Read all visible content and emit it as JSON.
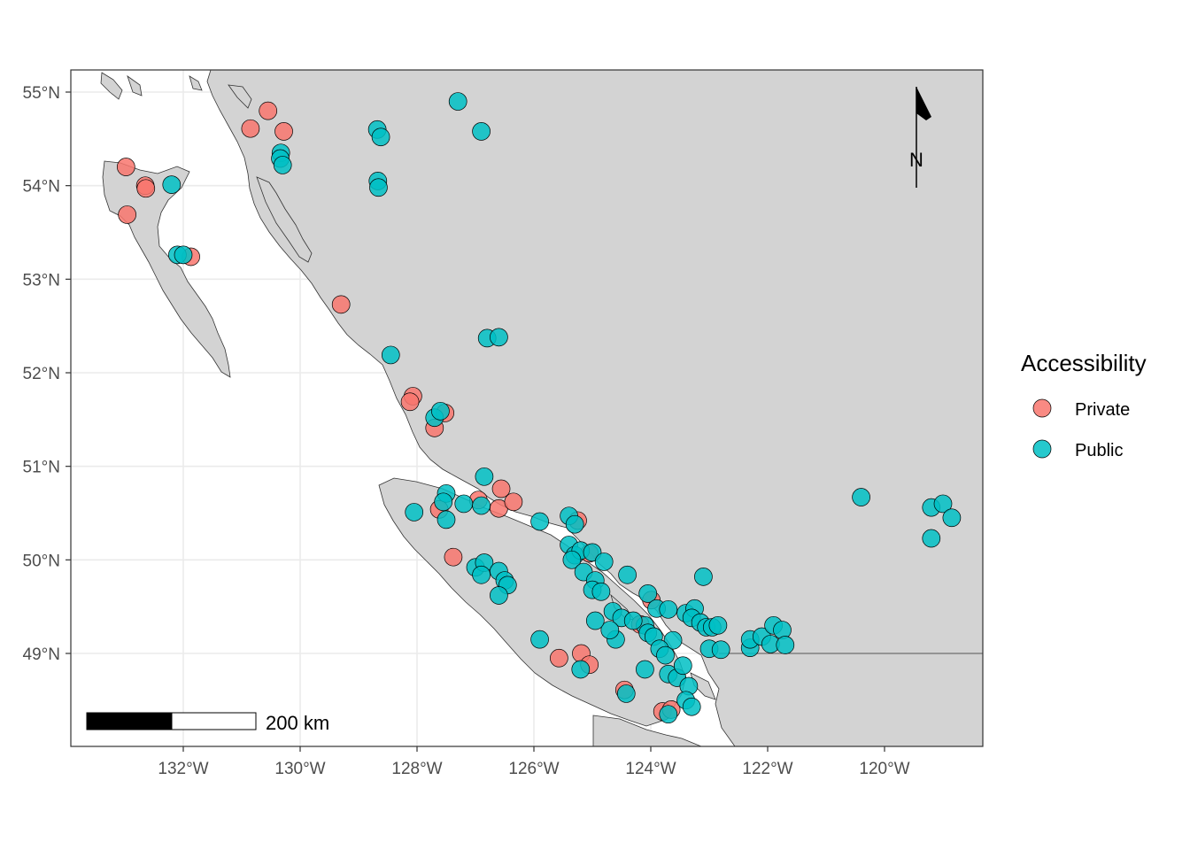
{
  "legend": {
    "title": "Accessibility",
    "items": [
      {
        "label": "Private",
        "color": "#F8766D"
      },
      {
        "label": "Public",
        "color": "#00BFC4"
      }
    ]
  },
  "scalebar": {
    "label": "200 km"
  },
  "north_arrow": {
    "label": "N"
  },
  "colors": {
    "land": "#d3d3d3",
    "water": "#ffffff",
    "grid": "#ebebeb",
    "border": "#333333"
  },
  "chart_data": {
    "type": "scatter",
    "title": "",
    "xlabel": "",
    "ylabel": "",
    "xlim": [
      -133.7,
      -118.3
    ],
    "ylim": [
      48.0,
      55.2
    ],
    "x_ticks": [
      -132,
      -130,
      -128,
      -126,
      -124,
      -122,
      -120
    ],
    "x_tick_labels": [
      "132°W",
      "130°W",
      "128°W",
      "126°W",
      "124°W",
      "122°W",
      "120°W"
    ],
    "y_ticks": [
      49,
      50,
      51,
      52,
      53,
      54,
      55
    ],
    "y_tick_labels": [
      "49°N",
      "50°N",
      "51°N",
      "52°N",
      "53°N",
      "54°N",
      "55°N"
    ],
    "grid": true,
    "legend_position": "right",
    "series": [
      {
        "name": "Private",
        "color": "#F8766D",
        "points": [
          [
            -132.98,
            54.2
          ],
          [
            -132.65,
            54.0
          ],
          [
            -132.64,
            53.97
          ],
          [
            -132.96,
            53.69
          ],
          [
            -131.87,
            53.24
          ],
          [
            -130.85,
            54.61
          ],
          [
            -130.55,
            54.8
          ],
          [
            -130.28,
            54.58
          ],
          [
            -129.3,
            52.73
          ],
          [
            -128.07,
            51.75
          ],
          [
            -128.12,
            51.69
          ],
          [
            -127.52,
            51.57
          ],
          [
            -127.7,
            51.41
          ],
          [
            -127.62,
            50.54
          ],
          [
            -127.38,
            50.03
          ],
          [
            -126.95,
            50.64
          ],
          [
            -126.6,
            50.55
          ],
          [
            -126.56,
            50.76
          ],
          [
            -126.35,
            50.62
          ],
          [
            -125.25,
            50.42
          ],
          [
            -125.05,
            50.07
          ],
          [
            -125.19,
            49.0
          ],
          [
            -125.05,
            48.88
          ],
          [
            -125.57,
            48.95
          ],
          [
            -124.45,
            48.61
          ],
          [
            -124.18,
            49.31
          ],
          [
            -123.99,
            49.57
          ],
          [
            -123.8,
            48.38
          ],
          [
            -123.65,
            48.4
          ]
        ]
      },
      {
        "name": "Public",
        "color": "#00BFC4",
        "points": [
          [
            -132.2,
            54.01
          ],
          [
            -132.1,
            53.26
          ],
          [
            -132.0,
            53.26
          ],
          [
            -130.33,
            54.35
          ],
          [
            -130.34,
            54.29
          ],
          [
            -130.3,
            54.22
          ],
          [
            -128.68,
            54.6
          ],
          [
            -128.62,
            54.52
          ],
          [
            -128.67,
            54.05
          ],
          [
            -128.66,
            53.98
          ],
          [
            -127.3,
            54.9
          ],
          [
            -126.9,
            54.58
          ],
          [
            -126.8,
            52.37
          ],
          [
            -126.6,
            52.38
          ],
          [
            -128.45,
            52.19
          ],
          [
            -127.7,
            51.52
          ],
          [
            -127.6,
            51.59
          ],
          [
            -126.85,
            50.89
          ],
          [
            -127.5,
            50.71
          ],
          [
            -127.55,
            50.62
          ],
          [
            -127.2,
            50.6
          ],
          [
            -126.9,
            50.58
          ],
          [
            -128.05,
            50.51
          ],
          [
            -127.5,
            50.43
          ],
          [
            -125.9,
            50.41
          ],
          [
            -125.4,
            50.47
          ],
          [
            -125.3,
            50.38
          ],
          [
            -125.4,
            50.16
          ],
          [
            -125.3,
            50.05
          ],
          [
            -125.2,
            50.1
          ],
          [
            -125.0,
            50.08
          ],
          [
            -125.35,
            50.0
          ],
          [
            -124.8,
            49.98
          ],
          [
            -124.4,
            49.84
          ],
          [
            -125.15,
            49.87
          ],
          [
            -124.95,
            49.78
          ],
          [
            -125.0,
            49.68
          ],
          [
            -124.85,
            49.66
          ],
          [
            -127.0,
            49.92
          ],
          [
            -126.85,
            49.97
          ],
          [
            -126.9,
            49.84
          ],
          [
            -126.6,
            49.88
          ],
          [
            -126.5,
            49.78
          ],
          [
            -126.45,
            49.73
          ],
          [
            -126.6,
            49.62
          ],
          [
            -124.05,
            49.64
          ],
          [
            -123.9,
            49.48
          ],
          [
            -123.7,
            49.47
          ],
          [
            -123.4,
            49.43
          ],
          [
            -123.25,
            49.48
          ],
          [
            -123.3,
            49.38
          ],
          [
            -123.15,
            49.33
          ],
          [
            -123.05,
            49.28
          ],
          [
            -122.95,
            49.28
          ],
          [
            -122.85,
            49.3
          ],
          [
            -123.1,
            49.82
          ],
          [
            -124.65,
            49.45
          ],
          [
            -124.5,
            49.38
          ],
          [
            -124.1,
            49.3
          ],
          [
            -124.05,
            49.22
          ],
          [
            -123.95,
            49.18
          ],
          [
            -123.62,
            49.14
          ],
          [
            -124.3,
            49.35
          ],
          [
            -124.6,
            49.15
          ],
          [
            -124.7,
            49.25
          ],
          [
            -124.95,
            49.35
          ],
          [
            -125.9,
            49.15
          ],
          [
            -125.2,
            48.83
          ],
          [
            -124.1,
            48.83
          ],
          [
            -123.85,
            49.05
          ],
          [
            -123.75,
            48.98
          ],
          [
            -123.7,
            48.78
          ],
          [
            -123.55,
            48.74
          ],
          [
            -123.45,
            48.87
          ],
          [
            -123.35,
            48.65
          ],
          [
            -123.4,
            48.5
          ],
          [
            -123.3,
            48.43
          ],
          [
            -124.42,
            48.57
          ],
          [
            -123.7,
            48.35
          ],
          [
            -123.0,
            49.05
          ],
          [
            -122.8,
            49.04
          ],
          [
            -122.3,
            49.06
          ],
          [
            -122.3,
            49.15
          ],
          [
            -122.1,
            49.18
          ],
          [
            -121.95,
            49.1
          ],
          [
            -121.9,
            49.3
          ],
          [
            -121.75,
            49.25
          ],
          [
            -121.7,
            49.09
          ],
          [
            -120.4,
            50.67
          ],
          [
            -119.2,
            50.56
          ],
          [
            -119.0,
            50.6
          ],
          [
            -118.85,
            50.45
          ],
          [
            -119.2,
            50.23
          ]
        ]
      }
    ]
  }
}
